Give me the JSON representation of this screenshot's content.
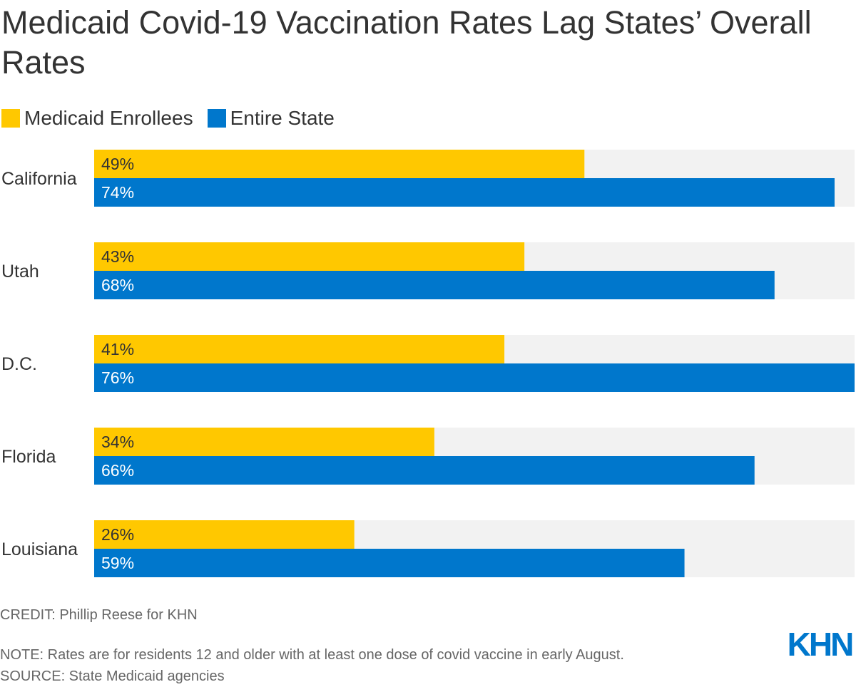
{
  "title": "Medicaid Covid-19 Vaccination Rates Lag States’ Overall Rates",
  "legend": [
    {
      "label": "Medicaid Enrollees",
      "color": "#ffc800"
    },
    {
      "label": "Entire State",
      "color": "#0077cc"
    }
  ],
  "chart_data": {
    "type": "bar",
    "orientation": "horizontal",
    "title": "Medicaid Covid-19 Vaccination Rates Lag States’ Overall Rates",
    "categories": [
      "California",
      "Utah",
      "D.C.",
      "Florida",
      "Louisiana"
    ],
    "series": [
      {
        "name": "Medicaid Enrollees",
        "color": "#ffc800",
        "values": [
          49,
          43,
          41,
          34,
          26
        ],
        "labels": [
          "49%",
          "43%",
          "41%",
          "34%",
          "26%"
        ]
      },
      {
        "name": "Entire State",
        "color": "#0077cc",
        "values": [
          74,
          68,
          76,
          66,
          59
        ],
        "labels": [
          "74%",
          "68%",
          "76%",
          "66%",
          "59%"
        ]
      }
    ],
    "xlim": [
      0,
      76
    ],
    "track_color": "#f2f2f2",
    "xlabel": "",
    "ylabel": "",
    "grid": false
  },
  "footer": {
    "credit": "CREDIT: Phillip Reese for KHN",
    "note": "NOTE: Rates are for residents 12 and older with at least one dose of covid vaccine in early August.",
    "source": "SOURCE: State Medicaid agencies"
  },
  "logo": {
    "text": "KHN",
    "color": "#0077cc"
  }
}
